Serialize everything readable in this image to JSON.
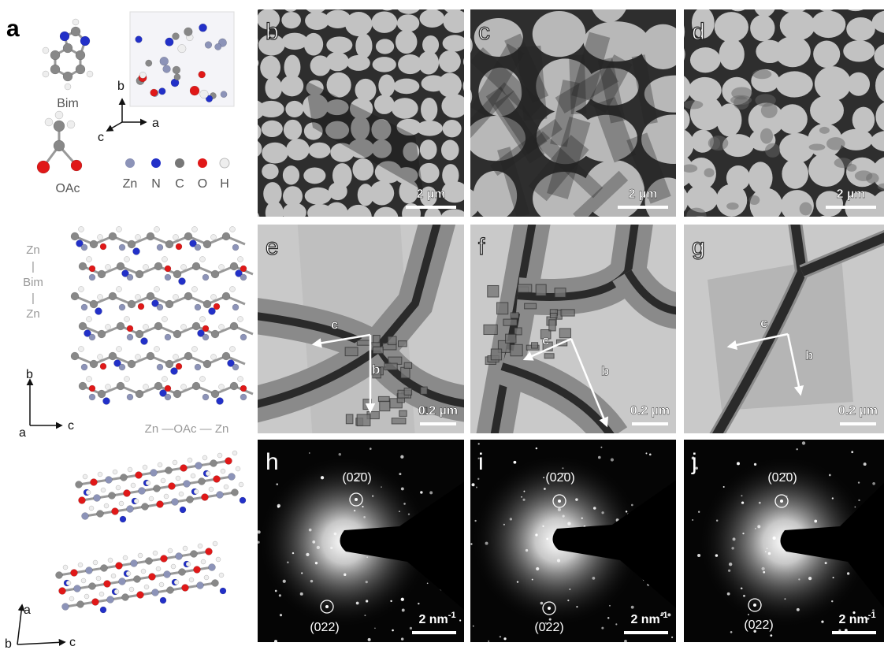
{
  "panel_a": {
    "label": "a",
    "molecules": [
      "Bim",
      "OAc"
    ],
    "axes_top": [
      "b",
      "a",
      "c"
    ],
    "legend": [
      "Zn",
      "N",
      "C",
      "O",
      "H"
    ],
    "chain_vertical": [
      "Zn",
      "|",
      "Bim",
      "|",
      "Zn"
    ],
    "axes_mid": [
      "b",
      "a",
      "c"
    ],
    "chain_horizontal": "Zn —OAc — Zn",
    "axes_bottom": [
      "a",
      "b",
      "c"
    ]
  },
  "panels": [
    {
      "label": "b",
      "scale_bar": "2 µm"
    },
    {
      "label": "c",
      "scale_bar": "2 µm"
    },
    {
      "label": "d",
      "scale_bar": "2 µm"
    },
    {
      "label": "e",
      "scale_bar": "0.2 µm",
      "axes": [
        "c",
        "b"
      ]
    },
    {
      "label": "f",
      "scale_bar": "0.2 µm",
      "axes": [
        "c",
        "b"
      ]
    },
    {
      "label": "g",
      "scale_bar": "0.2 µm",
      "axes": [
        "c",
        "b"
      ]
    },
    {
      "label": "h",
      "scale_bar": "2 nm",
      "scale_bar_sup": "-1",
      "spots": [
        "(02̄0)",
        "(022)"
      ]
    },
    {
      "label": "i",
      "scale_bar": "2 nm",
      "scale_bar_sup": "-1",
      "spots": [
        "(02̄0)",
        "(022)"
      ]
    },
    {
      "label": "j",
      "scale_bar": "2 nm",
      "scale_bar_sup": "-1",
      "spots": [
        "(02̄0)",
        "(022)"
      ]
    }
  ]
}
